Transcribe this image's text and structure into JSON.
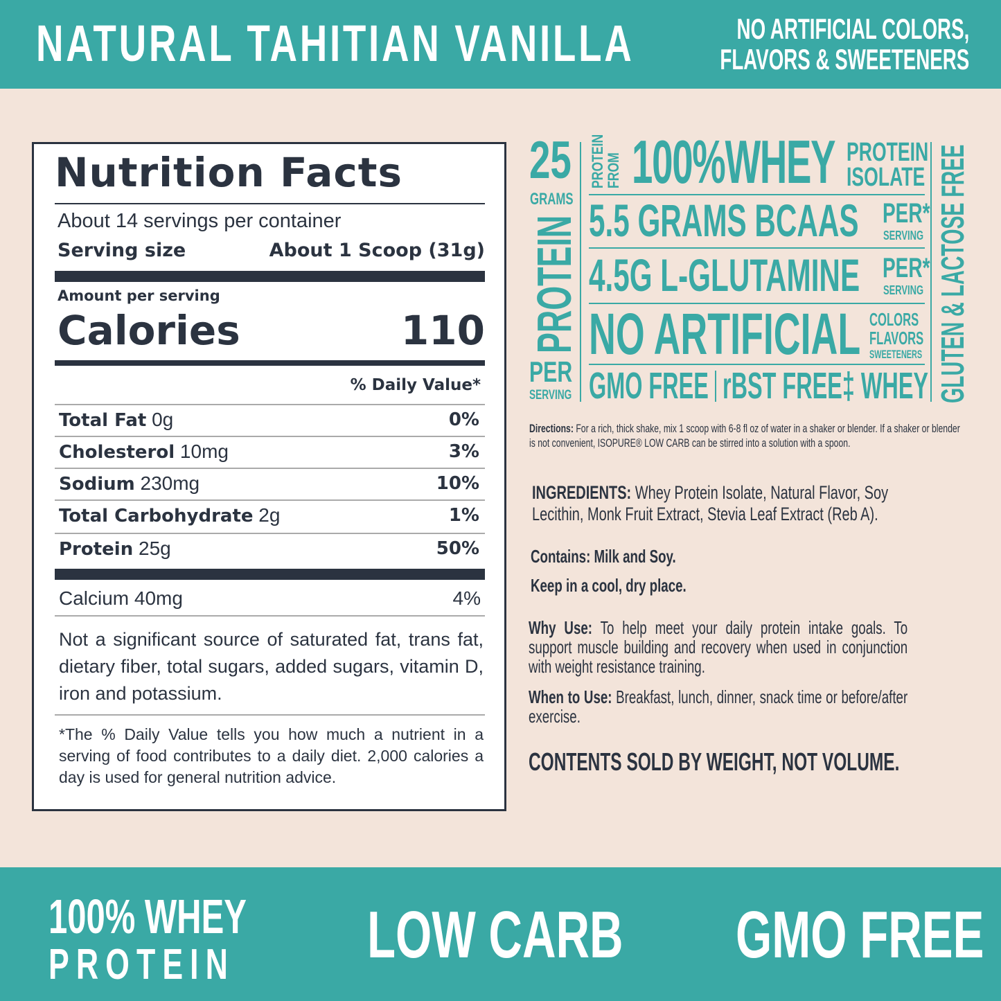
{
  "header": {
    "title": "NATURAL TAHITIAN VANILLA",
    "claim_line1": "NO ARTIFICIAL COLORS,",
    "claim_line2": "FLAVORS & SWEETENERS"
  },
  "nutrition": {
    "title": "Nutrition Facts",
    "servings": "About 14 servings per container",
    "serving_size_label": "Serving size",
    "serving_size_value": "About 1 Scoop (31g)",
    "amount_per_serving": "Amount per serving",
    "calories_label": "Calories",
    "calories_value": "110",
    "dv_header": "% Daily Value*",
    "rows": [
      {
        "name": "Total Fat",
        "amount": "0g",
        "dv": "0%"
      },
      {
        "name": "Cholesterol",
        "amount": "10mg",
        "dv": "3%"
      },
      {
        "name": "Sodium",
        "amount": "230mg",
        "dv": "10%"
      },
      {
        "name": "Total Carbohydrate",
        "amount": "2g",
        "dv": "1%"
      },
      {
        "name": "Protein",
        "amount": "25g",
        "dv": "50%"
      }
    ],
    "calcium": {
      "name": "Calcium 40mg",
      "dv": "4%"
    },
    "note": "Not a significant source of saturated fat, trans fat, dietary fiber, total sugars, added sugars, vitamin D, iron and potassium.",
    "footnote": "*The % Daily Value tells you how much a nutrient in a serving of food contributes to a daily diet. 2,000 calories a day is used for general nutrition advice."
  },
  "badges": {
    "grams_num": "25",
    "grams": "GRAMS",
    "protein": "PROTEIN",
    "per": "PER",
    "serving": "SERVING",
    "protein_from_1": "PROTEIN",
    "protein_from_2": "FROM",
    "whey": "100%WHEY",
    "isolate_1": "PROTEIN",
    "isolate_2": "ISOLATE",
    "bcaa": "5.5 GRAMS BCAAS",
    "glutamine": "4.5G L-GLUTAMINE",
    "per_star": "PER*",
    "per_serving": "SERVING",
    "no_artificial": "NO ARTIFICIAL",
    "colors": "COLORS",
    "flavors": "FLAVORS",
    "sweeteners": "SWEETENERS",
    "gmo": "GMO FREE",
    "rbst": "rBST FREE‡ WHEY",
    "gluten": "GLUTEN & LACTOSE FREE"
  },
  "info": {
    "directions_label": "Directions:",
    "directions": " For a rich, thick shake, mix 1 scoop with 6-8 fl oz of water in a shaker or blender. If a shaker or blender is not convenient, ISOPURE® LOW CARB can be stirred into a solution with a spoon.",
    "ingredients_label": "INGREDIENTS:",
    "ingredients": " Whey Protein Isolate, Natural Flavor, Soy Lecithin, Monk Fruit Extract, Stevia Leaf Extract (Reb A).",
    "contains": "Contains: Milk and Soy.",
    "keep": "Keep in a cool, dry place.",
    "why_label": "Why Use:",
    "why": " To help meet your daily protein intake goals. To support muscle building and recovery when used in conjunction with weight resistance training.",
    "when_label": "When to Use:",
    "when": " Breakfast, lunch, dinner, snack time or before/after exercise.",
    "weight": "CONTENTS SOLD BY WEIGHT, NOT VOLUME."
  },
  "footer": {
    "whey_1": "100% WHEY",
    "whey_2": "PROTEIN",
    "low_carb": "LOW CARB",
    "gmo_free": "GMO FREE"
  },
  "colors": {
    "teal": "#3aa9a5",
    "cream": "#f3e4da",
    "ink": "#2b3340"
  }
}
